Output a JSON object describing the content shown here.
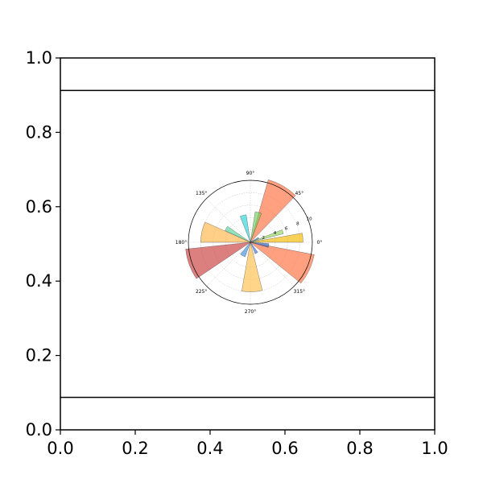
{
  "chart_data": [
    {
      "type": "line",
      "title": "",
      "xlabel": "",
      "ylabel": "",
      "xlim": [
        0,
        1
      ],
      "ylim": [
        0,
        1
      ],
      "xticks": [
        "0.0",
        "0.2",
        "0.4",
        "0.6",
        "0.8",
        "1.0"
      ],
      "yticks": [
        "0.0",
        "0.2",
        "0.4",
        "0.6",
        "0.8",
        "1.0"
      ],
      "hlines": [
        0.0875,
        0.9125
      ],
      "grid": false
    },
    {
      "type": "bar",
      "subtype": "polar-rose",
      "angle_labels": [
        "0°",
        "45°",
        "90°",
        "135°",
        "180°",
        "225°",
        "270°",
        "315°"
      ],
      "radial_ticks": [
        "2",
        "4",
        "6",
        "8",
        "10"
      ],
      "rmax": 10,
      "grid": true,
      "bars": [
        {
          "theta": 5,
          "width": 10,
          "r": 8.5,
          "color": "#f5b800"
        },
        {
          "theta": 18,
          "width": 7,
          "r": 5.5,
          "color": "#8fd65a"
        },
        {
          "theta": 28,
          "width": 8,
          "r": 1.5,
          "color": "#3a7bd5"
        },
        {
          "theta": 60,
          "width": 28,
          "r": 10.5,
          "color": "#ff6f3c"
        },
        {
          "theta": 75,
          "width": 12,
          "r": 5.0,
          "color": "#6fd15a"
        },
        {
          "theta": 105,
          "width": 13,
          "r": 4.5,
          "color": "#27d3d9"
        },
        {
          "theta": 150,
          "width": 10,
          "r": 4.5,
          "color": "#54d49a"
        },
        {
          "theta": 168,
          "width": 24,
          "r": 8.0,
          "color": "#ffb347"
        },
        {
          "theta": 200,
          "width": 28,
          "r": 10.5,
          "color": "#c73b3b"
        },
        {
          "theta": 240,
          "width": 20,
          "r": 2.5,
          "color": "#3a8fe0"
        },
        {
          "theta": 272,
          "width": 24,
          "r": 8.0,
          "color": "#ffc04a"
        },
        {
          "theta": 300,
          "width": 14,
          "r": 2.0,
          "color": "#3d6fd8"
        },
        {
          "theta": 335,
          "width": 28,
          "r": 10.5,
          "color": "#ff6f3c"
        },
        {
          "theta": 350,
          "width": 12,
          "r": 3.0,
          "color": "#2e64c8"
        }
      ]
    }
  ]
}
